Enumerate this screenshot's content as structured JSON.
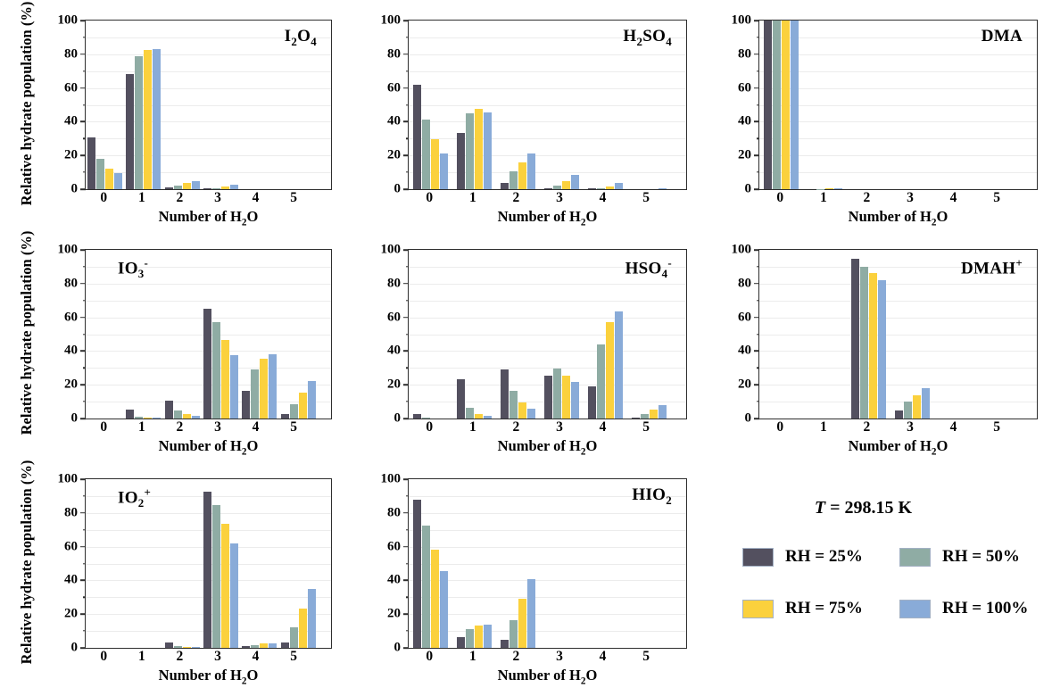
{
  "figure": {
    "ylabel": "Relative hydrate population (%)",
    "xlabel_parts": [
      {
        "t": "Number of H"
      },
      {
        "t": "2",
        "s": "sub"
      },
      {
        "t": "O"
      }
    ],
    "y_ticks": [
      0,
      20,
      40,
      60,
      80,
      100
    ],
    "y_minor_ticks": [
      10,
      30,
      50,
      70,
      90
    ],
    "gridline_step": 10,
    "x_ticks": [
      "0",
      "1",
      "2",
      "3",
      "4",
      "5"
    ],
    "spine_color": "#2e2e2e",
    "gridline_color": "#ececec"
  },
  "legend": {
    "title": "T = 298.15 K",
    "title_parts": [
      {
        "t": "T",
        "s": "i"
      },
      {
        "t": " = 298.15 K"
      }
    ],
    "entries": [
      {
        "label": "RH = 25%",
        "color": "#53505f"
      },
      {
        "label": "RH = 50%",
        "color": "#8faca4"
      },
      {
        "label": "RH = 75%",
        "color": "#fbd13d"
      },
      {
        "label": "RH = 100%",
        "color": "#89abd8"
      }
    ]
  },
  "chart_data": [
    {
      "type": "bar",
      "title": "I2O4",
      "title_pos": "right",
      "title_parts": [
        {
          "t": "I"
        },
        {
          "t": "2",
          "s": "sub"
        },
        {
          "t": "O"
        },
        {
          "t": "4",
          "s": "sub"
        }
      ],
      "categories": [
        "0",
        "1",
        "2",
        "3",
        "4",
        "5"
      ],
      "ylim": [
        0,
        100
      ],
      "series": [
        {
          "name": "RH = 25%",
          "values": [
            30.5,
            68,
            1,
            0.4,
            0,
            0
          ]
        },
        {
          "name": "RH = 50%",
          "values": [
            18,
            79,
            2.2,
            0.6,
            0,
            0
          ]
        },
        {
          "name": "RH = 75%",
          "values": [
            12,
            82.5,
            3.8,
            1.6,
            0,
            0
          ]
        },
        {
          "name": "RH = 100%",
          "values": [
            9.5,
            83,
            5,
            2.8,
            0,
            0
          ]
        }
      ]
    },
    {
      "type": "bar",
      "title": "H2SO4",
      "title_pos": "right",
      "title_parts": [
        {
          "t": "H"
        },
        {
          "t": "2",
          "s": "sub"
        },
        {
          "t": "SO"
        },
        {
          "t": "4",
          "s": "sub"
        }
      ],
      "categories": [
        "0",
        "1",
        "2",
        "3",
        "4",
        "5"
      ],
      "ylim": [
        0,
        100
      ],
      "series": [
        {
          "name": "RH = 25%",
          "values": [
            62,
            33.5,
            3.7,
            0.3,
            0.3,
            0
          ]
        },
        {
          "name": "RH = 50%",
          "values": [
            41.5,
            45,
            10.5,
            2.3,
            0.7,
            0
          ]
        },
        {
          "name": "RH = 75%",
          "values": [
            29.5,
            47.5,
            16,
            5,
            1.8,
            0
          ]
        },
        {
          "name": "RH = 100%",
          "values": [
            21,
            45.5,
            21,
            8.7,
            3.6,
            0.3
          ]
        }
      ]
    },
    {
      "type": "bar",
      "title": "DMA",
      "title_pos": "right",
      "title_parts": [
        {
          "t": "DMA"
        }
      ],
      "categories": [
        "0",
        "1",
        "2",
        "3",
        "4",
        "5"
      ],
      "ylim": [
        0,
        100
      ],
      "series": [
        {
          "name": "RH = 25%",
          "values": [
            100,
            0,
            0,
            0,
            0,
            0
          ]
        },
        {
          "name": "RH = 50%",
          "values": [
            100,
            0.2,
            0,
            0,
            0,
            0
          ]
        },
        {
          "name": "RH = 75%",
          "values": [
            100,
            0.3,
            0,
            0,
            0,
            0
          ]
        },
        {
          "name": "RH = 100%",
          "values": [
            100,
            0.5,
            0,
            0,
            0,
            0
          ]
        }
      ]
    },
    {
      "type": "bar",
      "title": "IO3-",
      "title_pos": "left",
      "title_parts": [
        {
          "t": "IO"
        },
        {
          "t": "3",
          "s": "sub"
        },
        {
          "t": "-",
          "s": "sup"
        }
      ],
      "categories": [
        "0",
        "1",
        "2",
        "3",
        "4",
        "5"
      ],
      "ylim": [
        0,
        100
      ],
      "series": [
        {
          "name": "RH = 25%",
          "values": [
            0,
            5.2,
            10.5,
            65.3,
            16.5,
            2.4
          ]
        },
        {
          "name": "RH = 50%",
          "values": [
            0,
            1.1,
            4.6,
            57,
            29,
            8.4
          ]
        },
        {
          "name": "RH = 75%",
          "values": [
            0,
            0.4,
            2.6,
            46.5,
            35.2,
            15.5
          ]
        },
        {
          "name": "RH = 100%",
          "values": [
            0,
            0.3,
            1.6,
            37.8,
            38.2,
            22.3
          ]
        }
      ]
    },
    {
      "type": "bar",
      "title": "HSO4-",
      "title_pos": "right",
      "title_parts": [
        {
          "t": "HSO"
        },
        {
          "t": "4",
          "s": "sub"
        },
        {
          "t": "-",
          "s": "sup"
        }
      ],
      "categories": [
        "0",
        "1",
        "2",
        "3",
        "4",
        "5"
      ],
      "ylim": [
        0,
        100
      ],
      "series": [
        {
          "name": "RH = 25%",
          "values": [
            2.4,
            23.3,
            29,
            25.5,
            19,
            0.6
          ]
        },
        {
          "name": "RH = 50%",
          "values": [
            0.3,
            6.6,
            16.6,
            29.5,
            44,
            2.7
          ]
        },
        {
          "name": "RH = 75%",
          "values": [
            0,
            2.6,
            9.7,
            25.5,
            57,
            5.2
          ]
        },
        {
          "name": "RH = 100%",
          "values": [
            0,
            1.4,
            6,
            21.5,
            63.5,
            7.9
          ]
        }
      ]
    },
    {
      "type": "bar",
      "title": "DMAH+",
      "title_pos": "right",
      "title_parts": [
        {
          "t": "DMAH"
        },
        {
          "t": "+",
          "s": "sup"
        }
      ],
      "categories": [
        "0",
        "1",
        "2",
        "3",
        "4",
        "5"
      ],
      "ylim": [
        0,
        100
      ],
      "series": [
        {
          "name": "RH = 25%",
          "values": [
            0,
            0,
            94.8,
            5,
            0,
            0
          ]
        },
        {
          "name": "RH = 50%",
          "values": [
            0,
            0,
            90.2,
            10,
            0,
            0
          ]
        },
        {
          "name": "RH = 75%",
          "values": [
            0,
            0,
            86,
            14,
            0,
            0
          ]
        },
        {
          "name": "RH = 100%",
          "values": [
            0,
            0,
            82,
            18,
            0,
            0
          ]
        }
      ]
    },
    {
      "type": "bar",
      "title": "IO2+",
      "title_pos": "left",
      "title_parts": [
        {
          "t": "IO"
        },
        {
          "t": "2",
          "s": "sub"
        },
        {
          "t": "+",
          "s": "sup"
        }
      ],
      "categories": [
        "0",
        "1",
        "2",
        "3",
        "4",
        "5"
      ],
      "ylim": [
        0,
        100
      ],
      "series": [
        {
          "name": "RH = 25%",
          "values": [
            0,
            0,
            3,
            92.8,
            0.9,
            3.4
          ]
        },
        {
          "name": "RH = 50%",
          "values": [
            0,
            0,
            1.2,
            84.8,
            1.7,
            12
          ]
        },
        {
          "name": "RH = 75%",
          "values": [
            0,
            0,
            0.8,
            73.5,
            2.4,
            23.5
          ]
        },
        {
          "name": "RH = 100%",
          "values": [
            0,
            0,
            0.3,
            61.8,
            2.8,
            35
          ]
        }
      ]
    },
    {
      "type": "bar",
      "title": "HIO2",
      "title_pos": "right",
      "title_parts": [
        {
          "t": "HIO"
        },
        {
          "t": "2",
          "s": "sub"
        }
      ],
      "categories": [
        "0",
        "1",
        "2",
        "3",
        "4",
        "5"
      ],
      "ylim": [
        0,
        100
      ],
      "series": [
        {
          "name": "RH = 25%",
          "values": [
            88,
            6.5,
            5,
            0,
            0,
            0
          ]
        },
        {
          "name": "RH = 50%",
          "values": [
            72.5,
            11,
            16.5,
            0,
            0,
            0
          ]
        },
        {
          "name": "RH = 75%",
          "values": [
            58,
            13.5,
            29,
            0,
            0,
            0
          ]
        },
        {
          "name": "RH = 100%",
          "values": [
            45.5,
            14,
            40.5,
            0,
            0,
            0
          ]
        }
      ]
    }
  ]
}
